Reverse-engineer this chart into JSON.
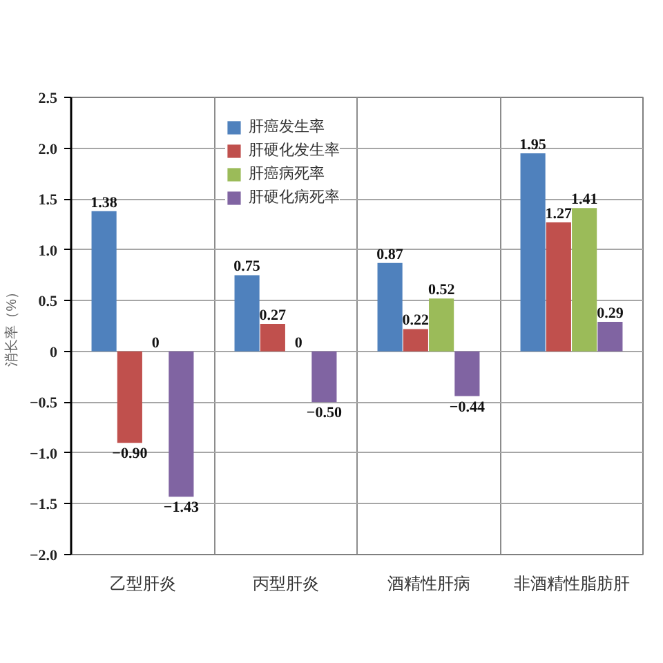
{
  "chart_data": {
    "type": "bar",
    "categories": [
      "乙型肝炎",
      "丙型肝炎",
      "酒精性肝病",
      "非酒精性脂肪肝"
    ],
    "series": [
      {
        "name": "肝癌发生率",
        "color": "#4f81bd",
        "values": [
          1.38,
          0.75,
          0.87,
          1.95
        ],
        "value_labels": [
          "1.38",
          "0.75",
          "0.87",
          "1.95"
        ]
      },
      {
        "name": "肝硬化发生率",
        "color": "#c0504d",
        "values": [
          -0.9,
          0.27,
          0.22,
          1.27
        ],
        "value_labels": [
          "−0.90",
          "0.27",
          "0.22",
          "1.27"
        ]
      },
      {
        "name": "肝癌病死率",
        "color": "#9bbb59",
        "values": [
          0,
          0,
          0.52,
          1.41
        ],
        "value_labels": [
          "0",
          "0",
          "0.52",
          "1.41"
        ]
      },
      {
        "name": "肝硬化病死率",
        "color": "#8064a2",
        "values": [
          -1.43,
          -0.5,
          -0.44,
          0.29
        ],
        "value_labels": [
          "−1.43",
          "−0.50",
          "−0.44",
          "0.29"
        ]
      }
    ],
    "ylabel": "消长率（%）",
    "ylim": [
      -2.0,
      2.5
    ],
    "yticks": [
      {
        "value": 2.5,
        "label": "2.5"
      },
      {
        "value": 2.0,
        "label": "2.0"
      },
      {
        "value": 1.5,
        "label": "1.5"
      },
      {
        "value": 1.0,
        "label": "1.0"
      },
      {
        "value": 0.5,
        "label": "0.5"
      },
      0,
      {
        "value": -0.5,
        "label": "−0.5"
      },
      {
        "value": -1.0,
        "label": "−1.0"
      },
      {
        "value": -1.5,
        "label": "−1.5"
      },
      {
        "value": -2.0,
        "label": "−2.0"
      }
    ],
    "grid": true,
    "legend": "top left"
  }
}
